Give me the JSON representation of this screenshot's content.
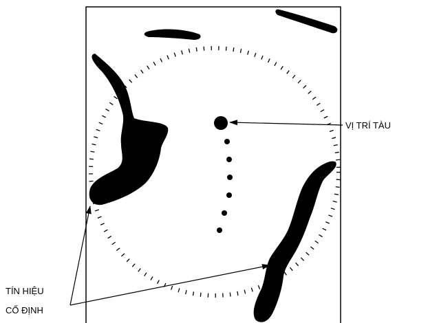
{
  "labels": {
    "ship_position": "VỊ TRÍ TÀU",
    "fixed_echo": [
      "TÍN HIỆU",
      "CỐ ĐỊNH"
    ]
  }
}
